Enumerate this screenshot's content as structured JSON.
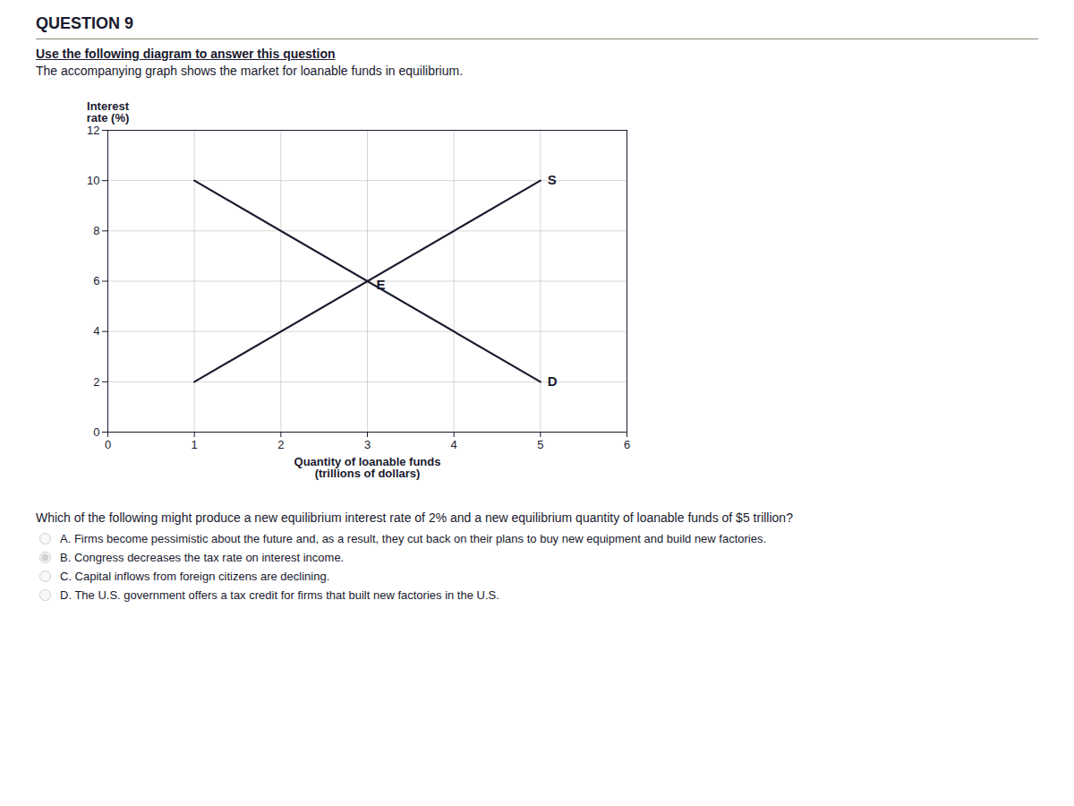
{
  "chart_data": {
    "type": "line",
    "title": "QUESTION 9",
    "subtitle": [
      "Use the following diagram to answer this question",
      "The accompanying graph shows the market for loanable funds in equilibrium."
    ],
    "ylabel": "Interest\nrate (%)",
    "xlabel": "Quantity of loanable funds\n(trillions of dollars)",
    "xlim": [
      0,
      6
    ],
    "ylim": [
      0,
      12
    ],
    "xticks": [
      0,
      1,
      2,
      3,
      4,
      5,
      6
    ],
    "yticks": [
      0,
      2,
      4,
      6,
      8,
      10,
      12
    ],
    "grid": true,
    "series": [
      {
        "name": "S",
        "color": "#1a1a2e",
        "x": [
          1,
          5
        ],
        "values": [
          2,
          10
        ]
      },
      {
        "name": "D",
        "color": "#1a1a2e",
        "x": [
          1,
          5
        ],
        "values": [
          10,
          2
        ]
      }
    ],
    "annotations": [
      {
        "text": "E",
        "x": 3,
        "y": 6
      }
    ],
    "question": "Which of the following might produce a new equilibrium interest rate of 2% and a new equilibrium quantity of loanable funds of $5 trillion?",
    "options": [
      {
        "text": "A. Firms become pessimistic about the future and, as a result, they cut back on their plans to buy new equipment and build new factories.",
        "selected": false
      },
      {
        "text": "B. Congress decreases the tax rate on interest income.",
        "selected": true
      },
      {
        "text": "C. Capital inflows from foreign citizens are declining.",
        "selected": false
      },
      {
        "text": "D. The U.S. government offers a tax credit for firms that built new factories in the U.S.",
        "selected": false
      }
    ]
  }
}
